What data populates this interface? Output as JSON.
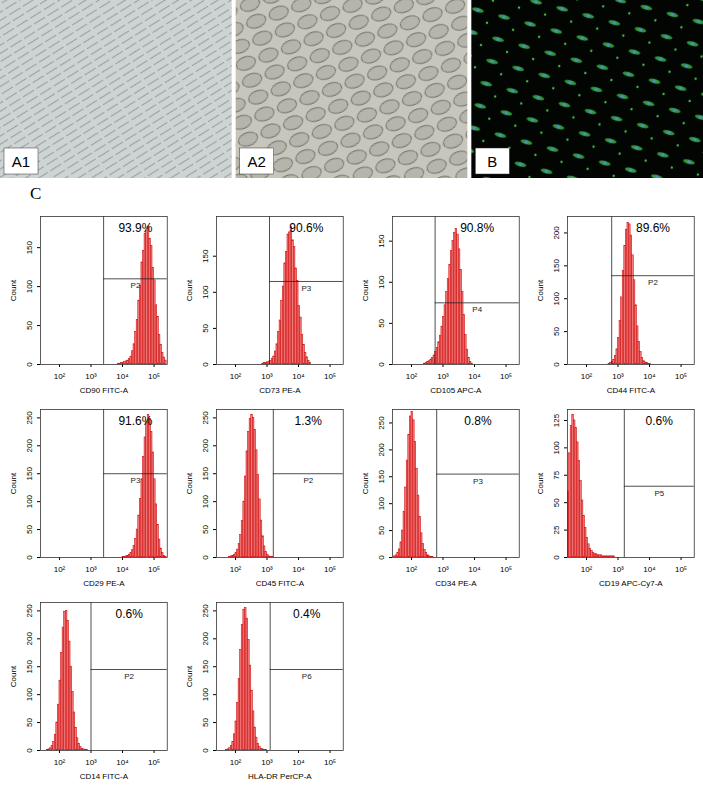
{
  "images": [
    {
      "label": "A1"
    },
    {
      "label": "A2"
    },
    {
      "label": "B"
    }
  ],
  "panel_label": "C",
  "chart_data": [
    {
      "type": "histogram",
      "xlabel": "CD90 FITC-A",
      "ylabel": "Count",
      "color": "#f28080",
      "log": "x",
      "xlim": [
        25,
        262144
      ],
      "xticks": [
        {
          "value": 100,
          "label": "10²"
        },
        {
          "value": 1000,
          "label": "10³"
        },
        {
          "value": 10000,
          "label": "10⁴"
        },
        {
          "value": 100000,
          "label": "10⁵"
        }
      ],
      "ylim": [
        0,
        190
      ],
      "yticks": [
        0,
        50,
        100,
        150
      ],
      "bins": [
        7079,
        7943,
        8913,
        10000,
        11220,
        12589,
        14125,
        15849,
        17783,
        19953,
        22387,
        25119,
        28184,
        31623,
        35481,
        39811,
        44668,
        50119,
        56234,
        63096,
        70795,
        79433,
        89125,
        100000,
        112202,
        125893,
        141254,
        158489,
        177828,
        199526,
        223872,
        251189
      ],
      "values": [
        1,
        1,
        2,
        2,
        3,
        4,
        5,
        7,
        10,
        17,
        26,
        42,
        57,
        82,
        101,
        131,
        146,
        168,
        171,
        177,
        161,
        152,
        124,
        108,
        76,
        61,
        38,
        25,
        15,
        9,
        5
      ],
      "gate": {
        "name": "P2",
        "range": [
          2512,
          262144
        ],
        "level": 110,
        "value": 93.9,
        "value_label": "93.9%"
      }
    },
    {
      "type": "histogram",
      "xlabel": "CD73 PE-A",
      "ylabel": "Count",
      "color": "#f28080",
      "log": "x",
      "xlim": [
        25,
        262144
      ],
      "xticks": [
        {
          "value": 100,
          "label": "10²"
        },
        {
          "value": 1000,
          "label": "10³"
        },
        {
          "value": 10000,
          "label": "10⁴"
        },
        {
          "value": 100000,
          "label": "10⁵"
        }
      ],
      "ylim": [
        0,
        205
      ],
      "yticks": [
        0,
        50,
        100,
        150
      ],
      "bins": [
        708,
        794,
        891,
        1000,
        1122,
        1259,
        1413,
        1585,
        1778,
        1995,
        2239,
        2512,
        2818,
        3162,
        3548,
        3981,
        4467,
        5012,
        5623,
        6310,
        7079,
        7943,
        8913,
        10000,
        11220,
        12589,
        14125,
        15849,
        17783,
        19953,
        22387,
        25119
      ],
      "values": [
        1,
        2,
        2,
        3,
        4,
        5,
        8,
        11,
        18,
        28,
        45,
        61,
        88,
        108,
        140,
        156,
        180,
        183,
        190,
        172,
        163,
        133,
        116,
        81,
        65,
        41,
        27,
        16,
        10,
        5,
        2
      ],
      "gate": {
        "name": "P3",
        "range": [
          1200,
          262144
        ],
        "level": 115,
        "value": 90.6,
        "value_label": "90.6%"
      }
    },
    {
      "type": "histogram",
      "xlabel": "CD105 APC-A",
      "ylabel": "Count",
      "color": "#f28080",
      "log": "x",
      "xlim": [
        25,
        262144
      ],
      "xticks": [
        {
          "value": 100,
          "label": "10²"
        },
        {
          "value": 1000,
          "label": "10³"
        },
        {
          "value": 10000,
          "label": "10⁴"
        },
        {
          "value": 100000,
          "label": "10⁵"
        }
      ],
      "ylim": [
        0,
        180
      ],
      "yticks": [
        0,
        50,
        100,
        150
      ],
      "bins": [
        251,
        282,
        316,
        355,
        398,
        447,
        501,
        562,
        631,
        708,
        794,
        891,
        1000,
        1122,
        1259,
        1413,
        1585,
        1778,
        1995,
        2239,
        2512,
        2818,
        3162,
        3548,
        3981,
        4467,
        5012,
        5623,
        6310,
        7079,
        7943,
        8913
      ],
      "values": [
        1,
        2,
        3,
        4,
        6,
        8,
        11,
        15,
        20,
        27,
        35,
        46,
        58,
        72,
        88,
        104,
        121,
        138,
        150,
        160,
        165,
        158,
        140,
        115,
        88,
        60,
        36,
        18,
        8,
        3,
        1
      ],
      "gate": {
        "name": "P4",
        "range": [
          562,
          262144
        ],
        "level": 75,
        "value": 90.8,
        "value_label": "90.8%"
      }
    },
    {
      "type": "histogram",
      "xlabel": "CD44 FITC-A",
      "ylabel": "Count",
      "color": "#f28080",
      "log": "x",
      "xlim": [
        25,
        262144
      ],
      "xticks": [
        {
          "value": 100,
          "label": "10²"
        },
        {
          "value": 1000,
          "label": "10³"
        },
        {
          "value": 10000,
          "label": "10⁴"
        },
        {
          "value": 100000,
          "label": "10⁵"
        }
      ],
      "ylim": [
        0,
        225
      ],
      "yticks": [
        0,
        50,
        100,
        150,
        200
      ],
      "bins": [
        501,
        562,
        631,
        708,
        794,
        891,
        1000,
        1122,
        1259,
        1413,
        1585,
        1778,
        1995,
        2239,
        2512,
        2818,
        3162,
        3548,
        3981,
        4467,
        5012,
        5623,
        6310,
        7079,
        7943,
        8913,
        10000,
        11220
      ],
      "values": [
        1,
        2,
        4,
        7,
        13,
        23,
        40,
        66,
        102,
        142,
        180,
        205,
        215,
        213,
        196,
        166,
        128,
        90,
        58,
        34,
        19,
        10,
        5,
        3,
        2,
        1,
        1
      ],
      "gate": {
        "name": "P2",
        "range": [
          631,
          262144
        ],
        "level": 135,
        "value": 89.6,
        "value_label": "89.6%"
      }
    },
    {
      "type": "histogram",
      "xlabel": "CD29 PE-A",
      "ylabel": "Count",
      "color": "#f28080",
      "log": "x",
      "xlim": [
        25,
        262144
      ],
      "xticks": [
        {
          "value": 100,
          "label": "10²"
        },
        {
          "value": 1000,
          "label": "10³"
        },
        {
          "value": 10000,
          "label": "10⁴"
        },
        {
          "value": 100000,
          "label": "10⁵"
        }
      ],
      "ylim": [
        0,
        265
      ],
      "yticks": [
        0,
        50,
        100,
        150,
        200,
        250
      ],
      "bins": [
        10000,
        11220,
        12589,
        14125,
        15849,
        17783,
        19953,
        22387,
        25119,
        28184,
        31623,
        35481,
        39811,
        44668,
        50119,
        56234,
        63096,
        70795,
        79433,
        89125,
        100000,
        112202,
        125893,
        141254,
        158489,
        177828,
        199526,
        223872,
        251189
      ],
      "values": [
        1,
        1,
        2,
        3,
        5,
        8,
        13,
        21,
        33,
        50,
        75,
        105,
        140,
        180,
        215,
        242,
        255,
        248,
        225,
        188,
        140,
        95,
        58,
        32,
        16,
        8,
        3,
        1
      ],
      "gate": {
        "name": "P3",
        "range": [
          2512,
          262144
        ],
        "level": 150,
        "value": 91.6,
        "value_label": "91.6%"
      }
    },
    {
      "type": "histogram",
      "xlabel": "CD45 FITC-A",
      "ylabel": "Count",
      "color": "#f28080",
      "log": "x",
      "xlim": [
        25,
        262144
      ],
      "xticks": [
        {
          "value": 100,
          "label": "10²"
        },
        {
          "value": 1000,
          "label": "10³"
        },
        {
          "value": 10000,
          "label": "10⁴"
        },
        {
          "value": 100000,
          "label": "10⁵"
        }
      ],
      "ylim": [
        0,
        265
      ],
      "yticks": [
        0,
        50,
        100,
        150,
        200,
        250
      ],
      "bins": [
        63.1,
        70.8,
        79.4,
        89.1,
        100,
        112,
        126,
        141,
        158,
        178,
        200,
        224,
        251,
        282,
        316,
        355,
        398,
        447,
        501,
        562,
        631,
        708,
        794,
        891,
        1000,
        1122,
        1259,
        1413,
        1585
      ],
      "values": [
        1,
        2,
        3,
        5,
        8,
        14,
        24,
        40,
        65,
        100,
        145,
        190,
        225,
        248,
        255,
        250,
        228,
        192,
        148,
        104,
        66,
        38,
        20,
        10,
        5,
        2,
        1,
        1
      ],
      "gate": {
        "name": "P2",
        "range": [
          1585,
          262144
        ],
        "level": 150,
        "value": 1.3,
        "value_label": "1.3%"
      }
    },
    {
      "type": "histogram",
      "xlabel": "CD34 PE-A",
      "ylabel": "Count",
      "color": "#f28080",
      "log": "x",
      "xlim": [
        25,
        262144
      ],
      "xticks": [
        {
          "value": 100,
          "label": "10²"
        },
        {
          "value": 1000,
          "label": "10³"
        },
        {
          "value": 10000,
          "label": "10⁴"
        },
        {
          "value": 100000,
          "label": "10⁵"
        }
      ],
      "ylim": [
        0,
        275
      ],
      "yticks": [
        0,
        50,
        100,
        150,
        200,
        250
      ],
      "bins": [
        28.2,
        31.6,
        35.5,
        39.8,
        44.7,
        50.1,
        56.2,
        63.1,
        70.8,
        79.4,
        89.1,
        100,
        112,
        126,
        141,
        158,
        178,
        200,
        224,
        251,
        282,
        316,
        355,
        398,
        447,
        501
      ],
      "values": [
        2,
        4,
        8,
        15,
        28,
        50,
        85,
        130,
        180,
        228,
        262,
        270,
        255,
        215,
        165,
        115,
        75,
        45,
        25,
        14,
        8,
        4,
        2,
        1,
        1
      ],
      "gate": {
        "name": "P3",
        "range": [
          631,
          262144
        ],
        "level": 155,
        "value": 0.8,
        "value_label": "0.8%"
      }
    },
    {
      "type": "histogram",
      "xlabel": "CD19 APC-Cy7-A",
      "ylabel": "Count",
      "color": "#f28080",
      "log": "x",
      "xlim": [
        25,
        262144
      ],
      "xticks": [
        {
          "value": 100,
          "label": "10²"
        },
        {
          "value": 1000,
          "label": "10³"
        },
        {
          "value": 10000,
          "label": "10⁴"
        },
        {
          "value": 100000,
          "label": "10⁵"
        }
      ],
      "ylim": [
        0,
        135
      ],
      "yticks": [
        0,
        25,
        50,
        75,
        100,
        125
      ],
      "bins": [
        25.1,
        28.2,
        31.6,
        35.5,
        39.8,
        44.7,
        50.1,
        56.2,
        63.1,
        70.8,
        79.4,
        89.1,
        100,
        112,
        126,
        141,
        158,
        178,
        200,
        224,
        251,
        282,
        316,
        355,
        398,
        447,
        501,
        562,
        631,
        708,
        794
      ],
      "values": [
        60,
        95,
        120,
        130,
        125,
        118,
        105,
        88,
        70,
        52,
        38,
        27,
        18,
        12,
        8,
        6,
        4,
        3,
        3,
        2,
        2,
        2,
        1,
        1,
        1,
        1,
        1,
        1,
        1,
        1
      ],
      "gate": {
        "name": "P5",
        "range": [
          1585,
          262144
        ],
        "level": 65,
        "value": 0.6,
        "value_label": "0.6%"
      }
    },
    {
      "type": "histogram",
      "xlabel": "CD14 FITC-A",
      "ylabel": "Count",
      "color": "#f28080",
      "log": "x",
      "xlim": [
        25,
        262144
      ],
      "xticks": [
        {
          "value": 100,
          "label": "10²"
        },
        {
          "value": 1000,
          "label": "10³"
        },
        {
          "value": 10000,
          "label": "10⁴"
        },
        {
          "value": 100000,
          "label": "10⁵"
        }
      ],
      "ylim": [
        0,
        265
      ],
      "yticks": [
        0,
        50,
        100,
        150,
        200,
        250
      ],
      "bins": [
        39.8,
        44.7,
        50.1,
        56.2,
        63.1,
        70.8,
        79.4,
        89.1,
        100,
        112,
        126,
        141,
        158,
        178,
        200,
        224,
        251,
        282,
        316,
        355,
        398,
        447,
        501,
        562,
        631,
        708,
        794
      ],
      "values": [
        1,
        2,
        4,
        8,
        15,
        28,
        50,
        82,
        125,
        175,
        220,
        248,
        250,
        232,
        195,
        150,
        105,
        68,
        40,
        22,
        12,
        6,
        3,
        2,
        1,
        1
      ],
      "gate": {
        "name": "P2",
        "range": [
          1000,
          262144
        ],
        "level": 145,
        "value": 0.6,
        "value_label": "0.6%"
      }
    },
    {
      "type": "histogram",
      "xlabel": "HLA-DR PerCP-A",
      "ylabel": "Count",
      "color": "#f28080",
      "log": "x",
      "xlim": [
        25,
        262144
      ],
      "xticks": [
        {
          "value": 100,
          "label": "10²"
        },
        {
          "value": 1000,
          "label": "10³"
        },
        {
          "value": 10000,
          "label": "10⁴"
        },
        {
          "value": 100000,
          "label": "10⁵"
        }
      ],
      "ylim": [
        0,
        265
      ],
      "yticks": [
        0,
        50,
        100,
        150,
        200,
        250
      ],
      "bins": [
        50.1,
        56.2,
        63.1,
        70.8,
        79.4,
        89.1,
        100,
        112,
        126,
        141,
        158,
        178,
        200,
        224,
        251,
        282,
        316,
        355,
        398,
        447,
        501,
        562,
        631,
        708,
        794,
        891,
        1000
      ],
      "values": [
        1,
        2,
        4,
        8,
        15,
        29,
        52,
        85,
        128,
        180,
        225,
        252,
        255,
        236,
        198,
        152,
        107,
        70,
        41,
        23,
        12,
        6,
        3,
        2,
        1,
        1
      ],
      "gate": {
        "name": "P6",
        "range": [
          1259,
          262144
        ],
        "level": 145,
        "value": 0.4,
        "value_label": "0.4%"
      }
    }
  ]
}
